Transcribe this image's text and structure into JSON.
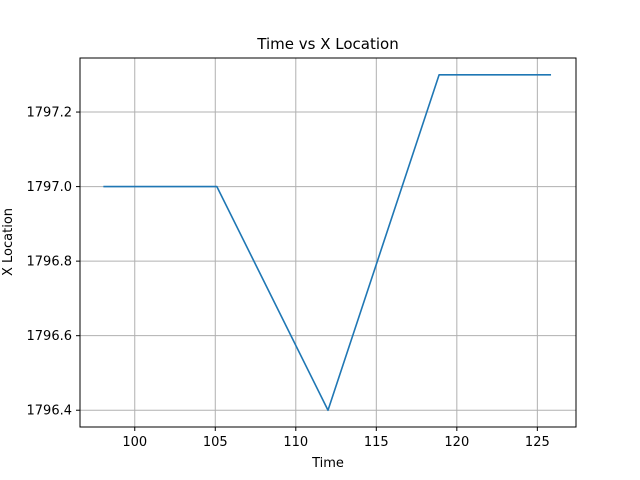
{
  "chart_data": {
    "type": "line",
    "title": "Time vs X Location",
    "xlabel": "Time",
    "ylabel": "X Location",
    "xlim": [
      96.6,
      127.4
    ],
    "ylim": [
      1796.355,
      1797.345
    ],
    "xticks": [
      100,
      105,
      110,
      115,
      120,
      125
    ],
    "yticks": [
      1796.4,
      1796.6,
      1796.8,
      1797.0,
      1797.2
    ],
    "xtick_labels": [
      "100",
      "105",
      "110",
      "115",
      "120",
      "125"
    ],
    "ytick_labels": [
      "1796.4",
      "1796.6",
      "1796.8",
      "1797.0",
      "1797.2"
    ],
    "grid": true,
    "series": [
      {
        "color": "#1f77b4",
        "x": [
          98.1,
          105.1,
          112.0,
          118.9,
          125.8
        ],
        "y": [
          1797.0,
          1797.0,
          1796.4,
          1797.3,
          1797.3
        ]
      }
    ]
  }
}
